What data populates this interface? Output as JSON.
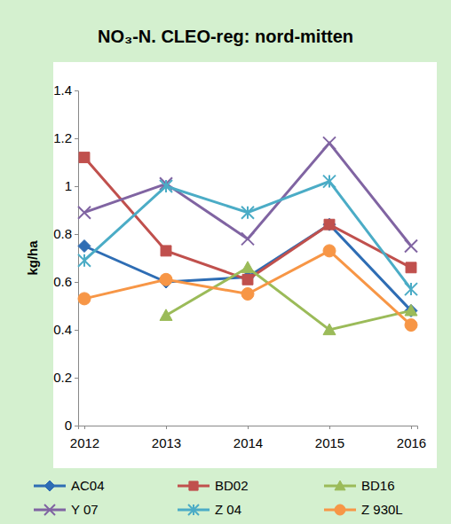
{
  "chart_data": {
    "type": "line",
    "title": "NO₃-N. CLEO-reg: nord-mitten",
    "y_label": "kg/ha",
    "categories": [
      "2012",
      "2013",
      "2014",
      "2015",
      "2016"
    ],
    "series": [
      {
        "name": "AC04",
        "color": "#2e6db4",
        "marker": "diamond",
        "values": [
          0.75,
          0.6,
          0.62,
          0.84,
          0.48
        ]
      },
      {
        "name": "BD02",
        "color": "#c0504d",
        "marker": "square",
        "values": [
          1.12,
          0.73,
          0.61,
          0.84,
          0.66
        ]
      },
      {
        "name": "BD16",
        "color": "#9bbb59",
        "marker": "triangle",
        "values": [
          null,
          0.46,
          0.66,
          0.4,
          0.48
        ]
      },
      {
        "name": "Y 07",
        "color": "#8064a2",
        "marker": "x",
        "values": [
          0.89,
          1.01,
          0.78,
          1.18,
          0.75
        ]
      },
      {
        "name": "Z 04",
        "color": "#4bacc6",
        "marker": "star",
        "values": [
          0.69,
          1.0,
          0.89,
          1.02,
          0.57
        ]
      },
      {
        "name": "Z 930L",
        "color": "#f79646",
        "marker": "circle",
        "values": [
          0.53,
          0.61,
          0.55,
          0.73,
          0.42
        ]
      }
    ],
    "ylim": [
      0,
      1.4
    ],
    "yticks": [
      0,
      0.2,
      0.4,
      0.6,
      0.8,
      1,
      1.2,
      1.4
    ],
    "grid": false,
    "legend": "bottom"
  }
}
